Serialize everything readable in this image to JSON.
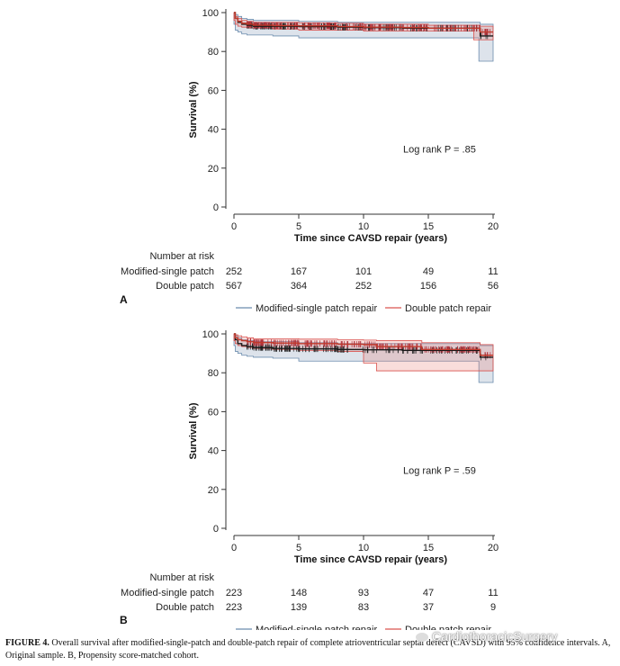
{
  "chart_data": [
    {
      "panel": "A",
      "type": "line",
      "xlabel": "Time since CAVSD repair (years)",
      "ylabel": "Survival (%)",
      "xlim": [
        0,
        20
      ],
      "ylim": [
        0,
        100
      ],
      "xticks": [
        0,
        5,
        10,
        15,
        20
      ],
      "yticks": [
        0,
        20,
        40,
        60,
        80,
        100
      ],
      "annotation": "Log rank P = .85",
      "series": [
        {
          "name": "Modified-single patch repair",
          "color": "#6b8cae",
          "x": [
            0,
            0.1,
            0.3,
            0.6,
            1.0,
            1.5,
            3,
            5,
            8,
            10,
            13,
            15,
            18.9,
            19,
            20
          ],
          "y": [
            100,
            97,
            95,
            94,
            93.5,
            93,
            93,
            92.8,
            92.5,
            92.3,
            92,
            92,
            92,
            88,
            88
          ],
          "ci_lower": [
            100,
            94,
            91,
            90,
            89,
            88.5,
            88.5,
            88,
            87,
            87,
            87,
            87,
            87,
            75,
            75
          ],
          "ci_upper": [
            100,
            99,
            98,
            97,
            96.5,
            96,
            96,
            95.5,
            95,
            95,
            95,
            95,
            95,
            94,
            94
          ]
        },
        {
          "name": "Double patch repair",
          "color": "#d9534f",
          "x": [
            0,
            0.1,
            0.3,
            0.6,
            1.0,
            1.5,
            3,
            5,
            8,
            10,
            13,
            15,
            18.5,
            19,
            20
          ],
          "y": [
            100,
            97,
            95.5,
            94.5,
            94,
            93.5,
            93.3,
            93.2,
            92.8,
            92.5,
            92.3,
            92,
            92,
            90,
            90
          ],
          "ci_lower": [
            100,
            96,
            94,
            93,
            92.5,
            92,
            92,
            91.5,
            91,
            91,
            90.5,
            90.5,
            90.5,
            86,
            86
          ],
          "ci_upper": [
            100,
            98,
            97,
            96,
            95.5,
            95,
            95,
            94.8,
            94.5,
            94,
            94,
            93.5,
            93.5,
            93,
            93
          ]
        }
      ],
      "risk_table": {
        "title": "Number at risk",
        "times": [
          0,
          5,
          10,
          15,
          20
        ],
        "rows": [
          {
            "label": "Modified-single patch",
            "values": [
              "252",
              "167",
              "101",
              "49",
              "11"
            ]
          },
          {
            "label": "Double patch",
            "values": [
              "567",
              "364",
              "252",
              "156",
              "56"
            ]
          }
        ]
      }
    },
    {
      "panel": "B",
      "type": "line",
      "xlabel": "Time since CAVSD repair (years)",
      "ylabel": "Survival (%)",
      "xlim": [
        0,
        20
      ],
      "ylim": [
        0,
        100
      ],
      "xticks": [
        0,
        5,
        10,
        15,
        20
      ],
      "yticks": [
        0,
        20,
        40,
        60,
        80,
        100
      ],
      "annotation": "Log rank P = .59",
      "series": [
        {
          "name": "Modified-single patch repair",
          "color": "#6b8cae",
          "x": [
            0,
            0.1,
            0.3,
            0.6,
            1.0,
            1.5,
            3,
            5,
            8,
            10,
            13,
            15,
            18.9,
            19,
            20
          ],
          "y": [
            100,
            97,
            95,
            94,
            93.5,
            93,
            92.5,
            92.3,
            92,
            91.8,
            91.5,
            91.5,
            91.5,
            88,
            88
          ],
          "ci_lower": [
            100,
            94,
            91,
            90,
            89,
            88.5,
            88,
            87.5,
            86,
            86,
            86,
            86,
            86,
            75,
            75
          ],
          "ci_upper": [
            100,
            99,
            98,
            97,
            96.5,
            96,
            96,
            95.5,
            95,
            95,
            95,
            95,
            95,
            94,
            94
          ]
        },
        {
          "name": "Double patch repair",
          "color": "#d9534f",
          "x": [
            0,
            0.1,
            0.3,
            0.6,
            1.0,
            1.5,
            3,
            5,
            8,
            10,
            11,
            14.5,
            18.9,
            19,
            20
          ],
          "y": [
            100,
            98,
            97,
            96.5,
            96,
            95.5,
            95.3,
            95,
            94.7,
            94.5,
            93.5,
            92,
            92,
            89,
            89
          ],
          "ci_lower": [
            100,
            96.5,
            95,
            94,
            93.5,
            93,
            92.5,
            92,
            91.5,
            91,
            85,
            81,
            81,
            81,
            81
          ],
          "ci_upper": [
            100,
            99.5,
            99,
            98.5,
            98,
            97.5,
            97.5,
            97.3,
            97,
            96.8,
            96.5,
            95.5,
            95.5,
            94.5,
            94.5
          ]
        }
      ],
      "risk_table": {
        "title": "Number at risk",
        "times": [
          0,
          5,
          10,
          15,
          20
        ],
        "rows": [
          {
            "label": "Modified-single patch",
            "values": [
              "223",
              "148",
              "93",
              "47",
              "11"
            ]
          },
          {
            "label": "Double patch",
            "values": [
              "223",
              "139",
              "83",
              "37",
              "9"
            ]
          }
        ]
      }
    }
  ],
  "caption": {
    "label": "FIGURE 4.",
    "text": "Overall survival after modified-single-patch and double-patch repair of complete atrioventricular septal defect (CAVSD) with 95% confidence intervals. A, Original sample. B, Propensity score-matched cohort."
  },
  "watermark": "CardiothoracicSurgery"
}
